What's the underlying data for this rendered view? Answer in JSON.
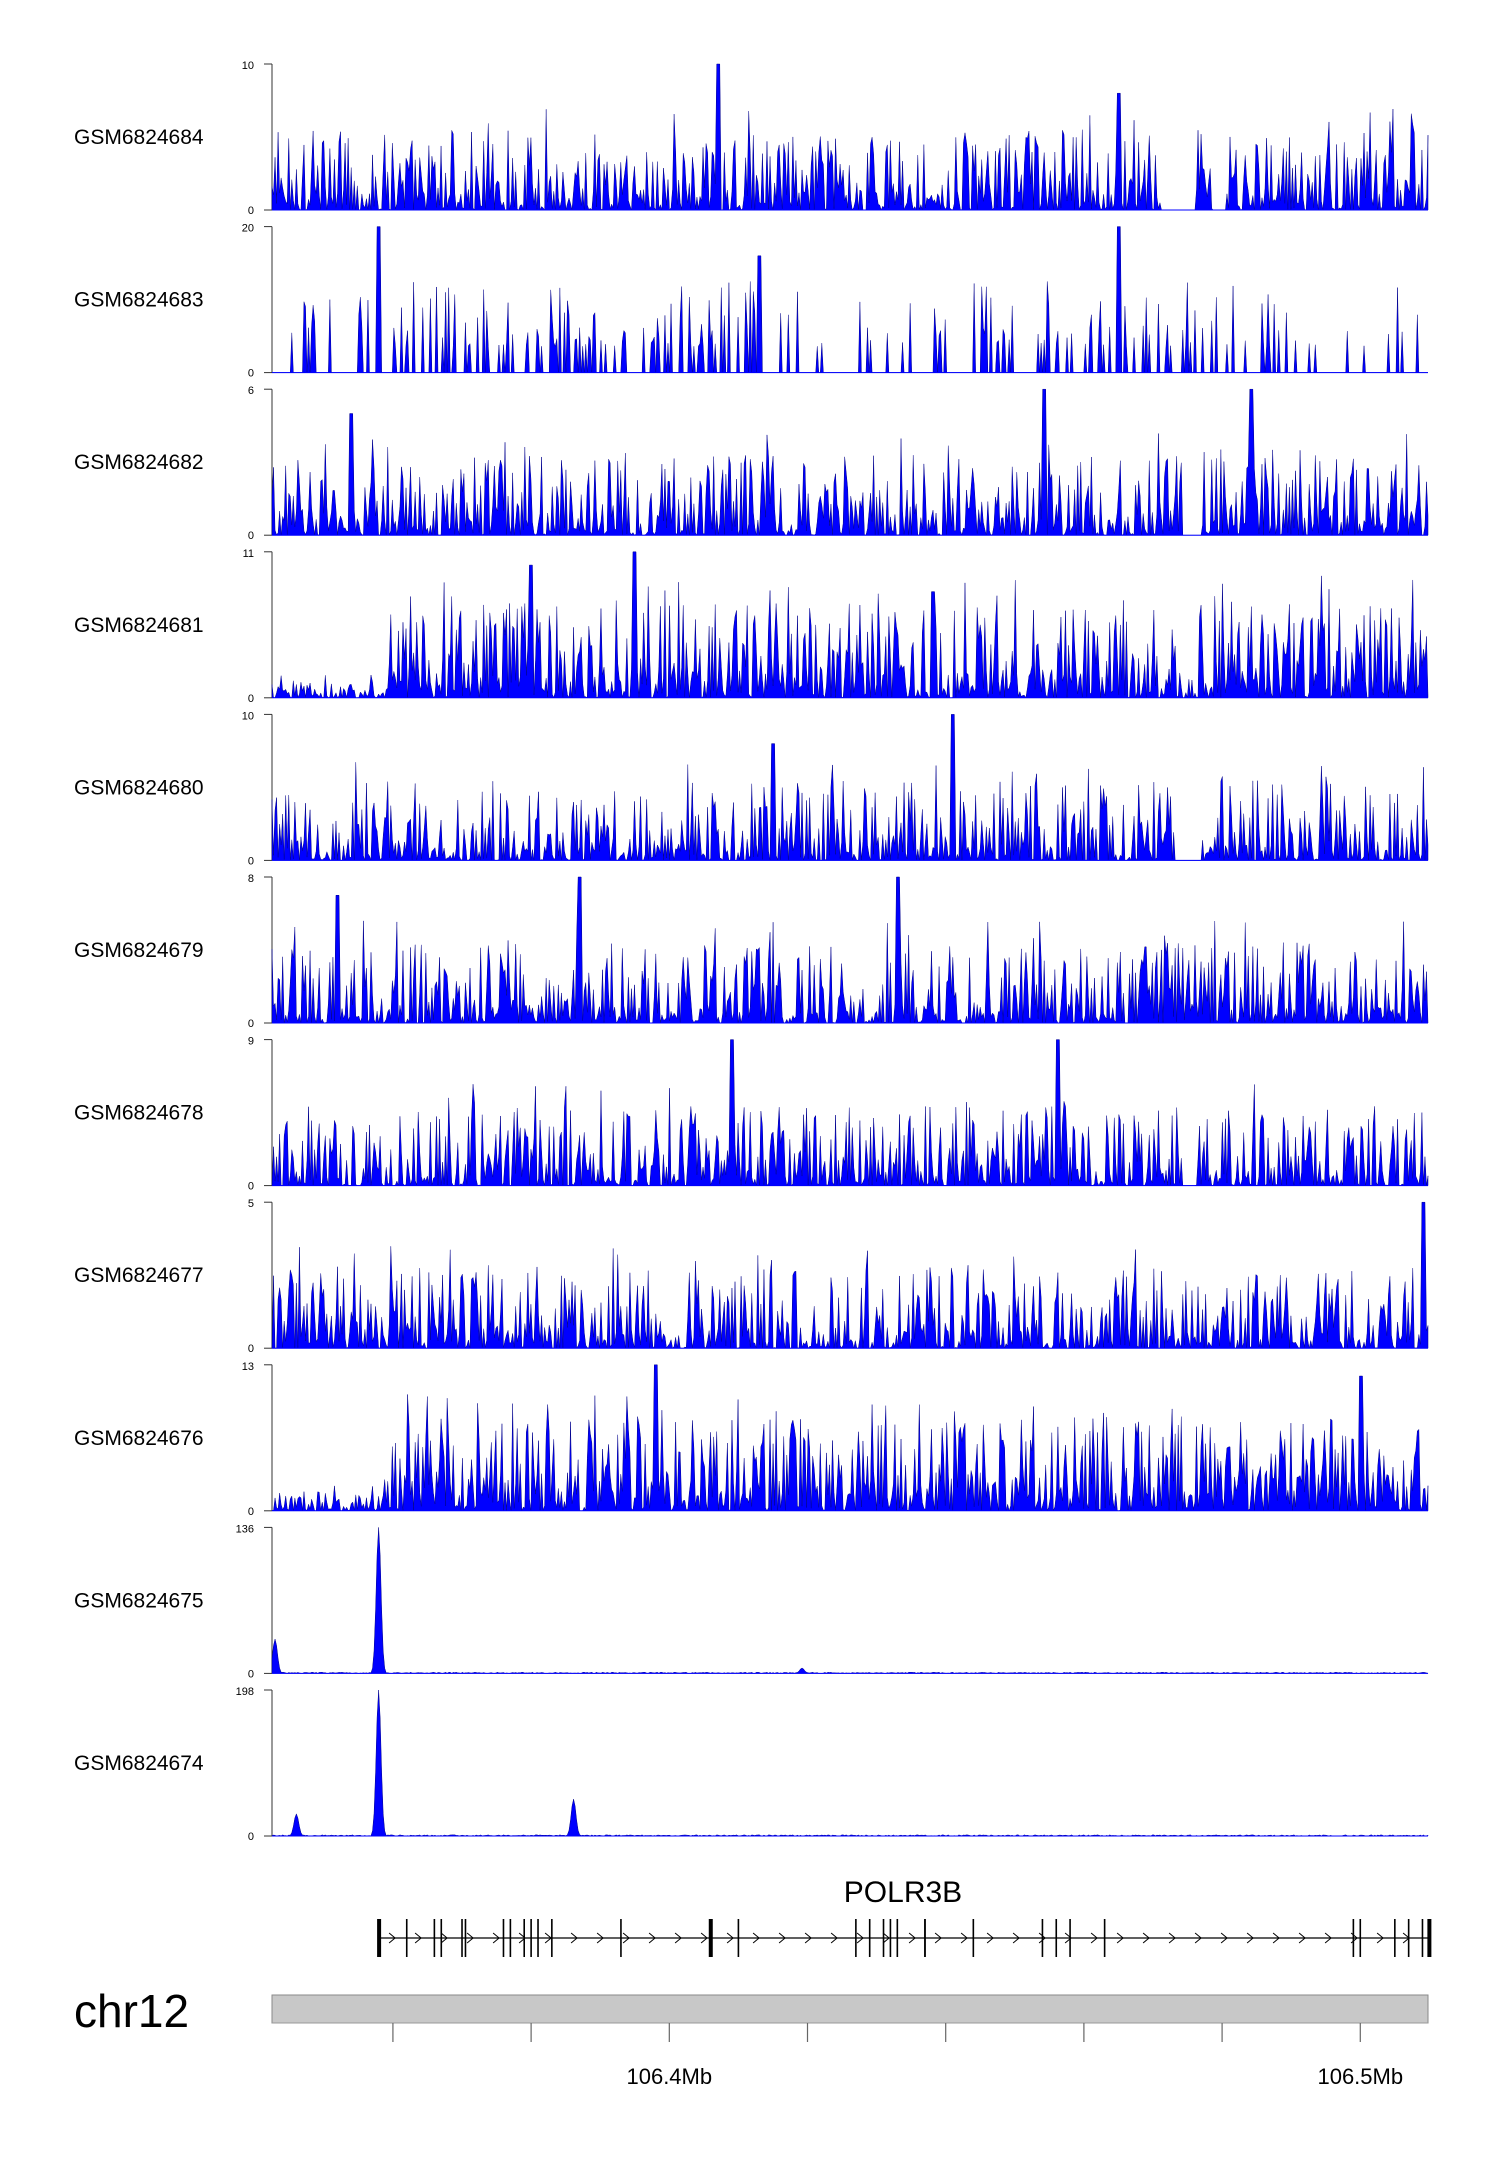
{
  "chart_data": {
    "type": "area",
    "genome_browser": true,
    "chromosome": "chr12",
    "gene": "POLR3B",
    "gene_strand": "+",
    "signal_color": "#0000ff",
    "axis_ticks": [
      "106.4Mb",
      "106.5Mb"
    ],
    "x_range_mb": [
      106.343,
      106.51
    ],
    "tracks": [
      {
        "name": "GSM6824684",
        "ymax": 10,
        "ymin": 0,
        "profile": "noisy",
        "peaks": [
          [
            106.407,
            10
          ],
          [
            106.465,
            8
          ]
        ],
        "gaps": [
          [
            106.471,
            106.476
          ],
          [
            106.4785,
            106.4805
          ]
        ]
      },
      {
        "name": "GSM6824683",
        "ymax": 20,
        "ymin": 0,
        "profile": "sparse",
        "peaks": [
          [
            106.358,
            20
          ],
          [
            106.465,
            20
          ],
          [
            106.413,
            16
          ]
        ],
        "gaps": []
      },
      {
        "name": "GSM6824682",
        "ymax": 6,
        "ymin": 0,
        "profile": "noisy",
        "peaks": [
          [
            106.454,
            6
          ],
          [
            106.484,
            6
          ],
          [
            106.354,
            5
          ]
        ],
        "gaps": [
          [
            106.474,
            106.477
          ]
        ]
      },
      {
        "name": "GSM6824681",
        "ymax": 11,
        "ymin": 0,
        "profile": "broad",
        "peaks": [
          [
            106.395,
            11
          ],
          [
            106.38,
            10
          ],
          [
            106.438,
            8
          ]
        ],
        "gaps": []
      },
      {
        "name": "GSM6824680",
        "ymax": 10,
        "ymin": 0,
        "profile": "noisy",
        "peaks": [
          [
            106.441,
            10
          ],
          [
            106.415,
            8
          ]
        ],
        "gaps": [
          [
            106.473,
            106.477
          ]
        ]
      },
      {
        "name": "GSM6824679",
        "ymax": 8,
        "ymin": 0,
        "profile": "noisy",
        "peaks": [
          [
            106.387,
            8
          ],
          [
            106.433,
            8
          ],
          [
            106.352,
            7
          ]
        ],
        "gaps": []
      },
      {
        "name": "GSM6824678",
        "ymax": 9,
        "ymin": 0,
        "profile": "noisy",
        "peaks": [
          [
            106.409,
            9
          ],
          [
            106.456,
            9
          ]
        ],
        "gaps": [
          [
            106.474,
            106.476
          ]
        ]
      },
      {
        "name": "GSM6824677",
        "ymax": 5,
        "ymin": 0,
        "profile": "noisy",
        "peaks": [
          [
            106.509,
            5
          ]
        ],
        "gaps": []
      },
      {
        "name": "GSM6824676",
        "ymax": 13,
        "ymin": 0,
        "profile": "broad",
        "peaks": [
          [
            106.398,
            13
          ],
          [
            106.5,
            12
          ]
        ],
        "gaps": []
      },
      {
        "name": "GSM6824675",
        "ymax": 136,
        "ymin": 0,
        "profile": "spike",
        "peaks": [
          [
            106.358,
            136
          ],
          [
            106.343,
            32
          ],
          [
            106.419,
            5
          ]
        ],
        "gaps": []
      },
      {
        "name": "GSM6824674",
        "ymax": 198,
        "ymin": 0,
        "profile": "spike",
        "peaks": [
          [
            106.358,
            198
          ],
          [
            106.386,
            50
          ],
          [
            106.346,
            30
          ]
        ],
        "gaps": []
      }
    ],
    "exons_mb": [
      106.358,
      106.362,
      106.366,
      106.367,
      106.37,
      106.3705,
      106.376,
      106.377,
      106.379,
      106.38,
      106.381,
      106.383,
      106.393,
      106.406,
      106.41,
      106.427,
      106.429,
      106.431,
      106.432,
      106.433,
      106.437,
      106.437,
      106.444,
      106.454,
      106.456,
      106.458,
      106.463,
      106.499,
      106.5,
      106.505,
      106.507,
      106.509,
      106.51
    ]
  }
}
